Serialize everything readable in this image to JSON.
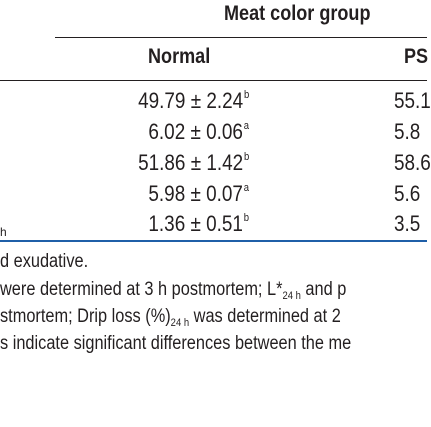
{
  "table": {
    "group_header": "Meat color group",
    "columns": {
      "normal": "Normal",
      "pse": "PS"
    },
    "rows": [
      {
        "normal_value": "49.79 ± 2.24",
        "normal_sup": "b",
        "pse_value": "55.1",
        "label_fragment": ""
      },
      {
        "normal_value": "6.02 ± 0.06",
        "normal_sup": "a",
        "pse_value": "5.8",
        "label_fragment": ""
      },
      {
        "normal_value": "51.86 ± 1.42",
        "normal_sup": "b",
        "pse_value": "58.6",
        "label_fragment": ""
      },
      {
        "normal_value": "5.98 ± 0.07",
        "normal_sup": "a",
        "pse_value": "5.6",
        "label_fragment": ""
      },
      {
        "normal_value": "1.36 ± 0.51",
        "normal_sup": "b",
        "pse_value": "3.5",
        "label_fragment": "h"
      }
    ]
  },
  "footnotes": {
    "line1": "d exudative.",
    "line2_a": "were determined at 3 h postmortem; L*",
    "line2_sub": "24 h",
    "line2_b": " and p",
    "line3_a": "stmortem; Drip loss (%)",
    "line3_sub": "24 h",
    "line3_b": " was determined at 2",
    "line4": "s indicate significant differences between the me"
  },
  "colors": {
    "text": "#231f20",
    "bottom_rule": "#1f5fa8"
  }
}
